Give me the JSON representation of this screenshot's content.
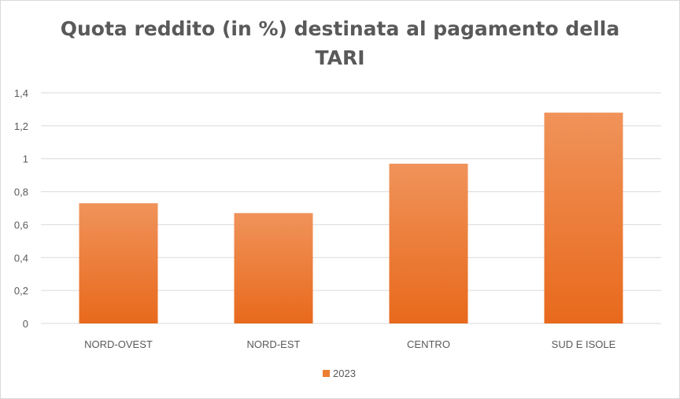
{
  "chart_data": {
    "type": "bar",
    "title": "Quota reddito (in %) destinata al pagamento della TARI",
    "categories": [
      "NORD-OVEST",
      "NORD-EST",
      "CENTRO",
      "SUD E ISOLE"
    ],
    "series": [
      {
        "name": "2023",
        "values": [
          0.73,
          0.67,
          0.97,
          1.28
        ],
        "color": "#ED7D31"
      }
    ],
    "ylim": [
      0,
      1.4
    ],
    "yticks": [
      "0",
      "0,2",
      "0,4",
      "0,6",
      "0,8",
      "1",
      "1,2",
      "1,4"
    ],
    "ytick_values": [
      0,
      0.2,
      0.4,
      0.6,
      0.8,
      1.0,
      1.2,
      1.4
    ],
    "grid": true,
    "legend_position": "bottom",
    "colors": {
      "bar_top": "#F0935A",
      "bar_bottom": "#E8691C",
      "grid": "#d9d9d9",
      "text": "#595959"
    }
  }
}
